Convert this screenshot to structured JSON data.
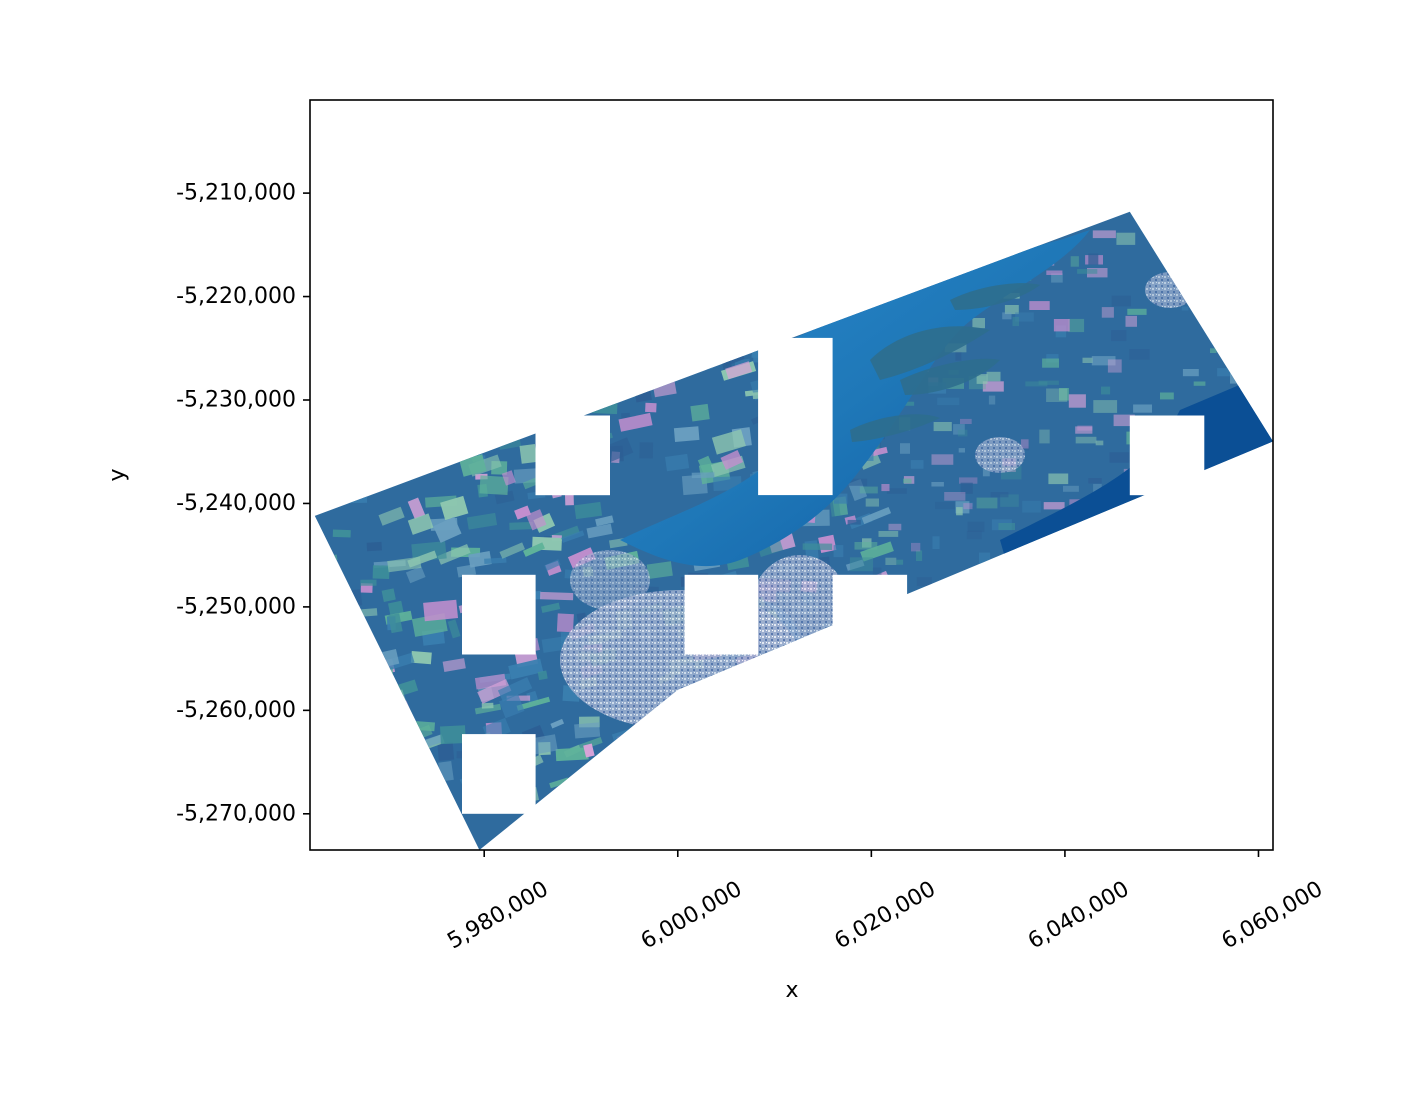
{
  "chart_data": {
    "type": "heatmap",
    "description_kind": "georeferenced raster image (true-color satellite mosaic)",
    "title": "",
    "xlabel": "x",
    "ylabel": "y",
    "xlim": [
      5962000,
      6061500
    ],
    "ylim": [
      -5273500,
      -5201000
    ],
    "x_ticks": [
      5980000,
      6000000,
      6020000,
      6040000,
      6060000
    ],
    "x_tick_labels": [
      "5,980,000",
      "6,000,000",
      "6,020,000",
      "6,040,000",
      "6,060,000"
    ],
    "y_ticks": [
      -5210000,
      -5220000,
      -5230000,
      -5240000,
      -5250000,
      -5260000,
      -5270000
    ],
    "y_tick_labels": [
      "-5,210,000",
      "-5,220,000",
      "-5,230,000",
      "-5,240,000",
      "-5,250,000",
      "-5,260,000",
      "-5,270,000"
    ],
    "x_tick_rotation_deg": 30,
    "grid": false,
    "legend": "none",
    "footprint_polygon": [
      [
        5962500,
        -5241200
      ],
      [
        6046700,
        -5211800
      ],
      [
        6061500,
        -5234000
      ],
      [
        6000000,
        -5258000
      ],
      [
        5979500,
        -5273500
      ]
    ],
    "nodata_blocks": [
      {
        "x": [
          5985300,
          5993000
        ],
        "y": [
          -5239200,
          -5231500
        ]
      },
      {
        "x": [
          6008300,
          6016000
        ],
        "y": [
          -5239200,
          -5224000
        ]
      },
      {
        "x": [
          6046700,
          6054400
        ],
        "y": [
          -5239200,
          -5231500
        ]
      },
      {
        "x": [
          5977700,
          5985300
        ],
        "y": [
          -5254600,
          -5246900
        ]
      },
      {
        "x": [
          6000700,
          6008300
        ],
        "y": [
          -5254600,
          -5246900
        ]
      },
      {
        "x": [
          6016000,
          6023700
        ],
        "y": [
          -5254600,
          -5246900
        ]
      },
      {
        "x": [
          5977700,
          5985300
        ],
        "y": [
          -5270000,
          -5262300
        ]
      }
    ],
    "colors": {
      "water": "#1f78b8",
      "deep_water": "#0b4f95",
      "land_base": "#2f6b9e",
      "field_pink": "#d9a3d8",
      "field_green": "#5fb39a",
      "field_teal": "#3e8f9a",
      "urban": "#b9c6dd"
    }
  }
}
